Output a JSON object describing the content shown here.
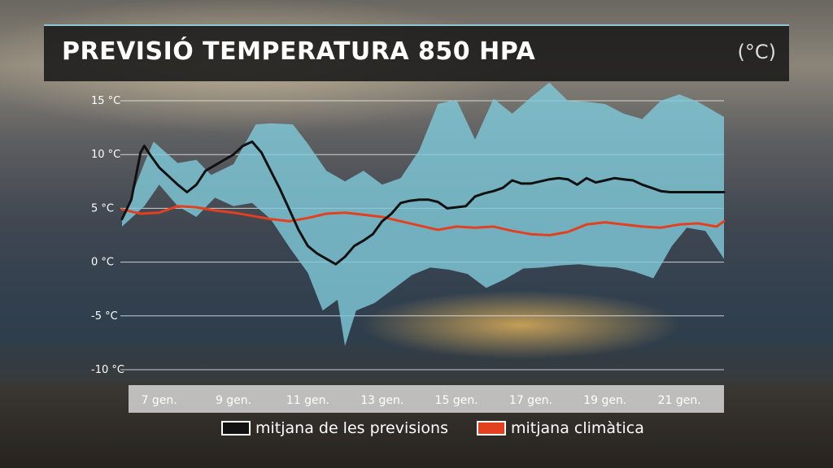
{
  "title": "PREVISIÓ TEMPERATURA 850 HPA",
  "unit": "(°C)",
  "colors": {
    "band": "#7fc8d8",
    "forecast": "#111111",
    "climate": "#e2401f",
    "grid": "#e6e6e6"
  },
  "chart_data": {
    "type": "line",
    "ylim": [
      -10,
      15
    ],
    "yticks": [
      15,
      10,
      5,
      0,
      -5,
      -10
    ],
    "ytick_labels": [
      "15 °C",
      "10 °C",
      "5 °C",
      "0 °C",
      "-5 °C",
      "-10 °C"
    ],
    "xlim": [
      6.0,
      22.2
    ],
    "xticks": [
      7,
      9,
      11,
      13,
      15,
      17,
      19,
      21
    ],
    "xtick_labels": [
      "7 gen.",
      "9 gen.",
      "11 gen.",
      "13 gen.",
      "15 gen.",
      "17 gen.",
      "19 gen.",
      "21 gen."
    ],
    "grid": true,
    "legend_position": "bottom",
    "series": [
      {
        "name": "mitjana de les previsions",
        "color": "#111111",
        "x": [
          6.0,
          6.25,
          6.5,
          6.6,
          6.75,
          7.0,
          7.25,
          7.5,
          7.75,
          8.0,
          8.25,
          8.5,
          8.75,
          9.0,
          9.25,
          9.5,
          9.75,
          10.0,
          10.25,
          10.5,
          10.75,
          11.0,
          11.25,
          11.5,
          11.75,
          12.0,
          12.25,
          12.5,
          12.75,
          13.0,
          13.25,
          13.5,
          13.75,
          14.0,
          14.25,
          14.5,
          14.75,
          15.0,
          15.25,
          15.5,
          15.75,
          16.0,
          16.25,
          16.5,
          16.75,
          17.0,
          17.25,
          17.5,
          17.75,
          18.0,
          18.25,
          18.5,
          18.75,
          19.0,
          19.25,
          19.5,
          19.75,
          20.0,
          20.25,
          20.5,
          20.75,
          21.0,
          21.25,
          21.5,
          21.75,
          22.0,
          22.2
        ],
        "values": [
          4.0,
          5.8,
          10.2,
          10.8,
          10.0,
          8.8,
          8.0,
          7.2,
          6.5,
          7.2,
          8.5,
          9.0,
          9.5,
          10.0,
          10.8,
          11.2,
          10.2,
          8.5,
          6.8,
          4.9,
          3.0,
          1.5,
          0.8,
          0.3,
          -0.2,
          0.5,
          1.5,
          2.0,
          2.6,
          3.8,
          4.5,
          5.5,
          5.7,
          5.8,
          5.8,
          5.6,
          5.0,
          5.1,
          5.2,
          6.1,
          6.4,
          6.6,
          6.9,
          7.6,
          7.3,
          7.3,
          7.5,
          7.7,
          7.8,
          7.7,
          7.2,
          7.8,
          7.4,
          7.6,
          7.8,
          7.7,
          7.6,
          7.2,
          6.9,
          6.6,
          6.5,
          6.5,
          6.5,
          6.5,
          6.5,
          6.5,
          6.5
        ]
      },
      {
        "name": "mitjana climàtica",
        "color": "#e2401f",
        "x": [
          6.0,
          6.5,
          7.0,
          7.5,
          8.0,
          8.5,
          9.0,
          9.5,
          10.0,
          10.5,
          11.0,
          11.5,
          12.0,
          12.5,
          13.0,
          13.5,
          14.0,
          14.5,
          15.0,
          15.5,
          16.0,
          16.5,
          17.0,
          17.5,
          18.0,
          18.5,
          19.0,
          19.5,
          20.0,
          20.5,
          21.0,
          21.5,
          22.0,
          22.2
        ],
        "values": [
          4.9,
          4.5,
          4.6,
          5.2,
          5.1,
          4.8,
          4.6,
          4.3,
          4.0,
          3.8,
          4.1,
          4.5,
          4.6,
          4.4,
          4.2,
          3.8,
          3.4,
          3.0,
          3.3,
          3.2,
          3.3,
          2.9,
          2.6,
          2.5,
          2.8,
          3.5,
          3.7,
          3.5,
          3.3,
          3.2,
          3.5,
          3.6,
          3.3,
          3.8
        ]
      }
    ],
    "band": {
      "upper": [
        [
          6.0,
          3.8
        ],
        [
          6.6,
          9.2
        ],
        [
          6.85,
          11.2
        ],
        [
          7.5,
          9.2
        ],
        [
          8.0,
          9.5
        ],
        [
          8.4,
          8.1
        ],
        [
          9.0,
          9.1
        ],
        [
          9.6,
          12.8
        ],
        [
          10.0,
          12.9
        ],
        [
          10.6,
          12.8
        ],
        [
          11.0,
          11.0
        ],
        [
          11.5,
          8.5
        ],
        [
          12.0,
          7.5
        ],
        [
          12.5,
          8.5
        ],
        [
          13.0,
          7.2
        ],
        [
          13.5,
          7.8
        ],
        [
          14.0,
          10.4
        ],
        [
          14.5,
          14.7
        ],
        [
          15.0,
          15.1
        ],
        [
          15.5,
          11.4
        ],
        [
          16.0,
          15.2
        ],
        [
          16.5,
          13.8
        ],
        [
          17.0,
          15.3
        ],
        [
          17.5,
          16.7
        ],
        [
          18.0,
          15.0
        ],
        [
          18.5,
          14.9
        ],
        [
          19.0,
          14.7
        ],
        [
          19.5,
          13.8
        ],
        [
          20.0,
          13.3
        ],
        [
          20.5,
          15.0
        ],
        [
          21.0,
          15.6
        ],
        [
          21.5,
          14.9
        ],
        [
          22.2,
          13.5
        ]
      ],
      "lower": [
        [
          22.2,
          0.3
        ],
        [
          21.7,
          2.9
        ],
        [
          21.2,
          3.2
        ],
        [
          20.8,
          1.5
        ],
        [
          20.3,
          -1.5
        ],
        [
          19.8,
          -0.9
        ],
        [
          19.3,
          -0.5
        ],
        [
          18.8,
          -0.4
        ],
        [
          18.3,
          -0.2
        ],
        [
          17.8,
          -0.3
        ],
        [
          17.3,
          -0.5
        ],
        [
          16.8,
          -0.6
        ],
        [
          16.3,
          -1.6
        ],
        [
          15.8,
          -2.4
        ],
        [
          15.3,
          -1.1
        ],
        [
          14.8,
          -0.7
        ],
        [
          14.3,
          -0.5
        ],
        [
          13.8,
          -1.2
        ],
        [
          13.3,
          -2.5
        ],
        [
          12.8,
          -3.8
        ],
        [
          12.3,
          -4.5
        ],
        [
          12.0,
          -7.8
        ],
        [
          11.8,
          -3.5
        ],
        [
          11.4,
          -4.5
        ],
        [
          11.0,
          -1.0
        ],
        [
          10.5,
          1.4
        ],
        [
          10.0,
          4.0
        ],
        [
          9.5,
          5.5
        ],
        [
          9.0,
          5.2
        ],
        [
          8.5,
          6.0
        ],
        [
          8.0,
          4.2
        ],
        [
          7.5,
          5.2
        ],
        [
          7.0,
          7.2
        ],
        [
          6.6,
          5.2
        ],
        [
          6.0,
          3.3
        ]
      ]
    }
  }
}
